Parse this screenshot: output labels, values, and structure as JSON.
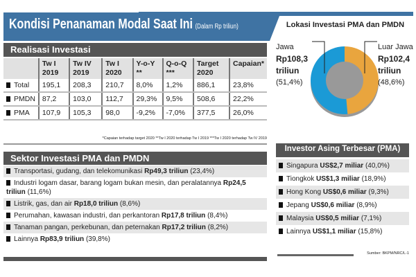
{
  "title": "Kondisi Penanaman Modal Saat Ini",
  "unit": "(Dalam Rp triliun)",
  "realisasi": {
    "heading": "Realisasi Investasi",
    "columns": [
      "",
      "Tw I 2019",
      "Tw IV 2019",
      "Tw I 2020",
      "Y-o-Y **",
      "Q-o-Q ***",
      "Target 2020",
      "Capaian*"
    ],
    "rows": [
      [
        "Total",
        "195,1",
        "208,3",
        "210,7",
        "8,0%",
        "1,2%",
        "886,1",
        "23,8%"
      ],
      [
        "PMDN",
        "87,2",
        "103,0",
        "112,7",
        "29,3%",
        "9,5%",
        "508,6",
        "22,2%"
      ],
      [
        "PMA",
        "107,9",
        "105,3",
        "98,0",
        "-9,2%",
        "-7,0%",
        "377,5",
        "26,0%"
      ]
    ],
    "footnote": "*Capaian terhadap target 2020   **Tw I 2020 terhadap Tw I 2019   ***Tw I 2020 terhadap Tw IV 2019"
  },
  "sektor": {
    "heading": "Sektor Investasi PMA dan PMDN",
    "items": [
      {
        "name": "Transportasi, gudang, dan telekomunikasi",
        "value": "Rp49,3 triliun",
        "pct": "(23,4%)"
      },
      {
        "name": "Industri logam dasar, barang logam bukan mesin, dan peralatannya",
        "value": "Rp24,5 triliun",
        "pct": "(11,6%)"
      },
      {
        "name": "Listrik, gas, dan air",
        "value": "Rp18,0 triliun",
        "pct": "(8,6%)"
      },
      {
        "name": "Perumahan, kawasan industri, dan perkantoran",
        "value": "Rp17,8 triliun",
        "pct": "(8,4%)"
      },
      {
        "name": "Tanaman pangan, perkebunan, dan peternakan",
        "value": "Rp17,2 triliun",
        "pct": "(8,2%)"
      },
      {
        "name": "Lainnya",
        "value": "Rp83,9 triliun",
        "pct": "(39,8%)"
      }
    ]
  },
  "chart_data": {
    "type": "pie",
    "title": "Lokasi Investasi PMA dan PMDN",
    "donut": true,
    "categories": [
      "Jawa",
      "Luar Jawa"
    ],
    "values": [
      108.3,
      102.4
    ],
    "value_labels": [
      "Rp108,3 triliun",
      "Rp102,4 triliun"
    ],
    "pct_labels": [
      "(51,4%)",
      "(48,6%)"
    ],
    "colors": [
      "#1b9ad6",
      "#e9a53e"
    ]
  },
  "investor": {
    "heading": "Investor Asing Terbesar (PMA)",
    "items": [
      {
        "name": "Singapura",
        "value": "US$2,7 miliar",
        "pct": "(40,0%)"
      },
      {
        "name": "Tiongkok",
        "value": "US$1,3 miliar",
        "pct": "(18,9%)"
      },
      {
        "name": "Hong Kong",
        "value": "US$0,6 miliar",
        "pct": "(9,3%)"
      },
      {
        "name": "Jepang",
        "value": "US$0,6 miliar",
        "pct": "(8,9%)"
      },
      {
        "name": "Malaysia",
        "value": "US$0,5 miliar",
        "pct": "(7,1%)"
      },
      {
        "name": "Lainnya",
        "value": "US$1,1 miliar",
        "pct": "(15,8%)"
      }
    ]
  },
  "source": "Sumber: BKPM/NRC/L-1"
}
